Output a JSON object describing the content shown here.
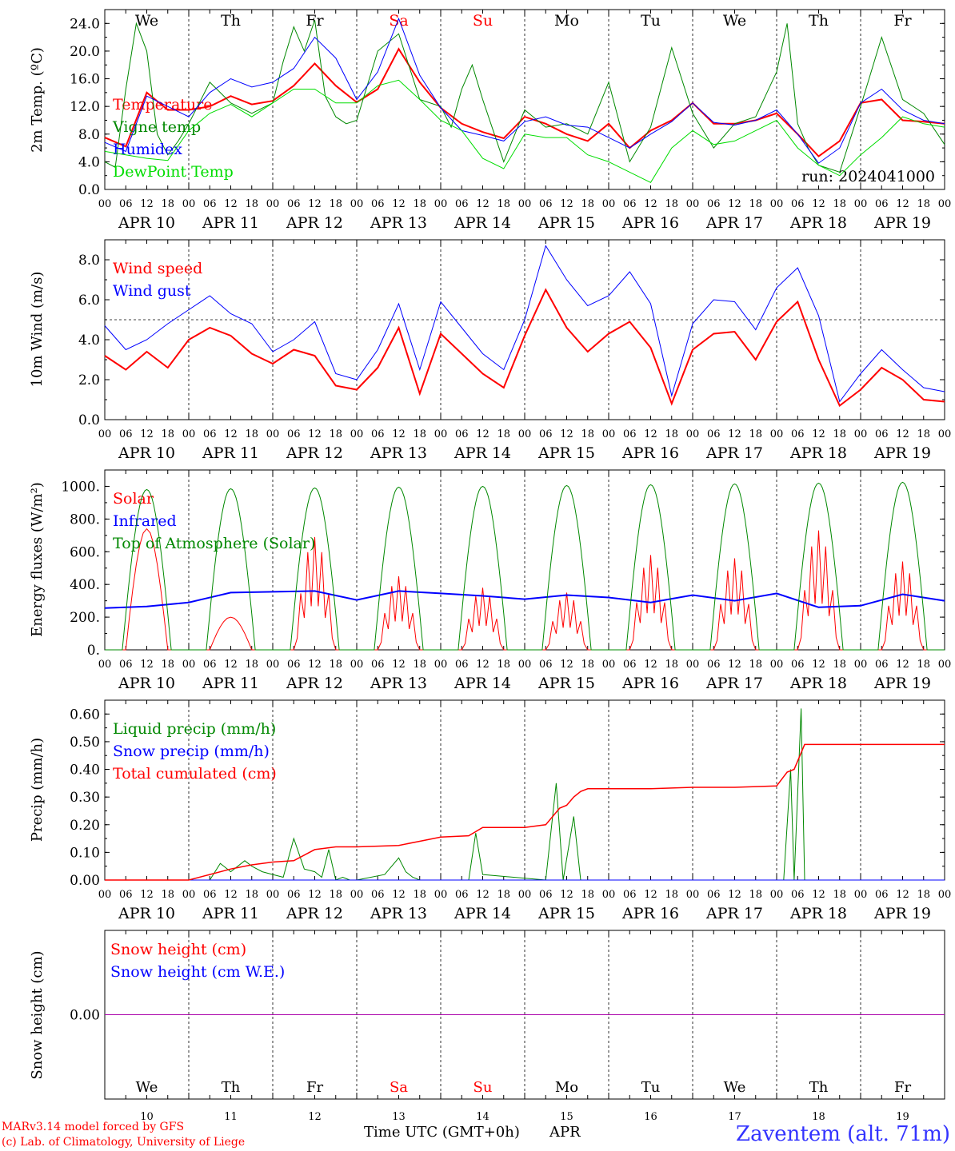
{
  "colors": {
    "temperature": "#ff0000",
    "vigne": "#008800",
    "humidex": "#0000ff",
    "dewpoint": "#00dd00",
    "day_red": "#ff0000",
    "text": "#000000",
    "station": "#3333ff",
    "purple": "#aa00aa"
  },
  "footer": {
    "model_line": "MARv3.14 model forced by GFS",
    "copyright_line": "(c) Lab. of Climatology, University of Liege",
    "axis_title": "Time UTC (GMT+0h)",
    "month": "APR",
    "station": "Zaventem (alt. 71m)"
  },
  "chart_data": [
    {
      "type": "line",
      "ylabel": "2m Temp. (ºC)",
      "ylim": [
        0,
        26
      ],
      "yticks": [
        "0.0",
        "4.0",
        "8.0",
        "12.0",
        "16.0",
        "20.0",
        "24.0"
      ],
      "ytick_values": [
        0,
        4,
        8,
        12,
        16,
        20,
        24
      ],
      "annotation": "run: 2024041000",
      "top_labels": [
        "We",
        "Th",
        "Fr",
        "Sa",
        "Su",
        "Mo",
        "Tu",
        "We",
        "Th",
        "Fr"
      ],
      "top_label_colors": [
        "#000000",
        "#000000",
        "#000000",
        "#ff0000",
        "#ff0000",
        "#000000",
        "#000000",
        "#000000",
        "#000000",
        "#000000"
      ],
      "x_hour_labels": [
        "00",
        "06",
        "12",
        "18"
      ],
      "x_day_labels": [
        "APR 10",
        "APR 11",
        "APR 12",
        "APR 13",
        "APR 14",
        "APR 15",
        "APR 16",
        "APR 17",
        "APR 18",
        "APR 19"
      ],
      "series": [
        {
          "name": "Temperature",
          "color": "#ff0000",
          "width": 2,
          "x": [
            0,
            6,
            12,
            18,
            24,
            30,
            36,
            42,
            48,
            54,
            60,
            66,
            72,
            78,
            84,
            90,
            96,
            102,
            108,
            114,
            120,
            126,
            132,
            138,
            144,
            150,
            156,
            162,
            168,
            174,
            180,
            186,
            192,
            198,
            204,
            210,
            216,
            222,
            228,
            234,
            240
          ],
          "y": [
            7.5,
            6.2,
            14.0,
            11.5,
            11.5,
            12.0,
            13.5,
            12.3,
            12.8,
            15.0,
            18.2,
            15.0,
            12.6,
            14.5,
            20.3,
            15.5,
            11.8,
            9.5,
            8.3,
            7.4,
            10.5,
            9.5,
            8.0,
            7.0,
            9.5,
            6.0,
            8.5,
            10.0,
            12.5,
            9.5,
            9.5,
            10.0,
            11.0,
            8.0,
            4.8,
            7.0,
            12.5,
            13.0,
            10.0,
            9.8,
            9.5
          ]
        },
        {
          "name": "Vigne temp",
          "color": "#008800",
          "width": 1,
          "x": [
            0,
            3,
            6,
            9,
            12,
            15,
            18,
            21,
            24,
            30,
            36,
            42,
            48,
            51,
            54,
            57,
            60,
            63,
            66,
            69,
            72,
            78,
            84,
            90,
            96,
            99,
            102,
            105,
            108,
            114,
            120,
            126,
            132,
            138,
            144,
            150,
            156,
            162,
            168,
            174,
            180,
            186,
            192,
            195,
            198,
            201,
            204,
            210,
            216,
            222,
            228,
            234,
            240
          ],
          "y": [
            4.0,
            3.2,
            14.5,
            24.0,
            20.0,
            8.0,
            5.0,
            7.0,
            9.5,
            15.5,
            12.5,
            11.0,
            12.5,
            18.5,
            23.5,
            20.0,
            24.5,
            13.5,
            10.5,
            9.5,
            10.0,
            20.0,
            22.5,
            13.0,
            12.0,
            9.0,
            14.5,
            18.0,
            13.0,
            4.0,
            11.5,
            9.0,
            9.5,
            8.0,
            15.5,
            4.0,
            9.0,
            20.5,
            11.0,
            6.0,
            9.5,
            10.5,
            17.0,
            24.0,
            9.5,
            6.0,
            3.5,
            2.5,
            12.0,
            22.0,
            13.0,
            11.0,
            6.5
          ]
        },
        {
          "name": "Humidex",
          "color": "#0000ff",
          "width": 1,
          "x": [
            0,
            6,
            12,
            18,
            24,
            30,
            36,
            42,
            48,
            54,
            60,
            66,
            72,
            78,
            84,
            90,
            96,
            102,
            108,
            114,
            120,
            126,
            132,
            138,
            144,
            150,
            156,
            162,
            168,
            174,
            180,
            186,
            192,
            198,
            204,
            210,
            216,
            222,
            228,
            234,
            240
          ],
          "y": [
            6.8,
            5.5,
            13.5,
            12.0,
            10.5,
            14.0,
            16.0,
            14.8,
            15.5,
            17.5,
            22.0,
            19.0,
            13.0,
            17.0,
            24.7,
            16.5,
            11.8,
            8.5,
            7.8,
            7.0,
            9.8,
            10.5,
            9.3,
            9.0,
            7.5,
            6.0,
            8.0,
            9.8,
            12.5,
            9.7,
            9.3,
            10.0,
            11.5,
            8.0,
            3.8,
            6.0,
            12.5,
            14.5,
            11.5,
            10.0,
            9.5
          ]
        },
        {
          "name": "DewPoint Temp",
          "color": "#00dd00",
          "width": 1,
          "x": [
            0,
            6,
            12,
            18,
            24,
            30,
            36,
            42,
            48,
            54,
            60,
            66,
            72,
            78,
            84,
            90,
            96,
            102,
            108,
            114,
            120,
            126,
            132,
            138,
            144,
            150,
            156,
            162,
            168,
            174,
            180,
            186,
            192,
            198,
            204,
            210,
            216,
            222,
            228,
            234,
            240
          ],
          "y": [
            5.5,
            5.0,
            4.5,
            4.2,
            8.5,
            11.0,
            12.3,
            10.5,
            12.5,
            14.5,
            14.5,
            12.5,
            12.5,
            15.0,
            15.8,
            13.0,
            10.0,
            8.5,
            4.5,
            3.0,
            8.0,
            7.5,
            7.5,
            5.0,
            4.0,
            2.5,
            1.0,
            6.0,
            8.5,
            6.5,
            7.0,
            8.5,
            10.0,
            6.0,
            3.5,
            2.0,
            5.0,
            7.5,
            10.5,
            9.5,
            9.0
          ]
        }
      ]
    },
    {
      "type": "line",
      "ylabel": "10m Wind (m/s)",
      "ylim": [
        0,
        9
      ],
      "yticks": [
        "0.0",
        "2.0",
        "4.0",
        "6.0",
        "8.0"
      ],
      "ytick_values": [
        0,
        2,
        4,
        6,
        8
      ],
      "reference_line": 5,
      "x_hour_labels": [
        "00",
        "06",
        "12",
        "18"
      ],
      "x_day_labels": [
        "APR 10",
        "APR 11",
        "APR 12",
        "APR 13",
        "APR 14",
        "APR 15",
        "APR 16",
        "APR 17",
        "APR 18",
        "APR 19"
      ],
      "series": [
        {
          "name": "Wind speed",
          "color": "#ff0000",
          "width": 2,
          "x": [
            0,
            6,
            12,
            18,
            24,
            30,
            36,
            42,
            48,
            54,
            60,
            66,
            72,
            78,
            84,
            90,
            96,
            102,
            108,
            114,
            120,
            126,
            132,
            138,
            144,
            150,
            156,
            162,
            168,
            174,
            180,
            186,
            192,
            198,
            204,
            210,
            216,
            222,
            228,
            234,
            240
          ],
          "y": [
            3.2,
            2.5,
            3.4,
            2.6,
            4.0,
            4.6,
            4.2,
            3.3,
            2.8,
            3.5,
            3.2,
            1.7,
            1.5,
            2.6,
            4.6,
            1.3,
            4.3,
            3.3,
            2.3,
            1.6,
            4.2,
            6.5,
            4.6,
            3.4,
            4.3,
            4.9,
            3.6,
            0.8,
            3.5,
            4.3,
            4.4,
            3.0,
            4.9,
            5.9,
            3.0,
            0.7,
            1.5,
            2.6,
            2.0,
            1.0,
            0.9
          ]
        },
        {
          "name": "Wind gust",
          "color": "#0000ff",
          "width": 1,
          "x": [
            0,
            6,
            12,
            18,
            24,
            30,
            36,
            42,
            48,
            54,
            60,
            66,
            72,
            78,
            84,
            90,
            96,
            102,
            108,
            114,
            120,
            126,
            132,
            138,
            144,
            150,
            156,
            162,
            168,
            174,
            180,
            186,
            192,
            198,
            204,
            210,
            216,
            222,
            228,
            234,
            240
          ],
          "y": [
            4.7,
            3.5,
            4.0,
            4.8,
            5.5,
            6.2,
            5.3,
            4.8,
            3.4,
            4.0,
            4.9,
            2.3,
            2.0,
            3.5,
            5.8,
            2.5,
            5.9,
            4.6,
            3.3,
            2.5,
            5.0,
            8.7,
            7.0,
            5.7,
            6.2,
            7.4,
            5.8,
            1.2,
            4.8,
            6.0,
            5.9,
            4.5,
            6.6,
            7.6,
            5.2,
            0.9,
            2.3,
            3.5,
            2.5,
            1.6,
            1.4
          ]
        }
      ]
    },
    {
      "type": "line",
      "ylabel": "Energy fluxes (W/m²)",
      "ylim": [
        0,
        1100
      ],
      "yticks": [
        "0.",
        "200.",
        "400.",
        "600.",
        "800.",
        "1000."
      ],
      "ytick_values": [
        0,
        200,
        400,
        600,
        800,
        1000
      ],
      "x_hour_labels": [
        "00",
        "06",
        "12",
        "18"
      ],
      "x_day_labels": [
        "APR 10",
        "APR 11",
        "APR 12",
        "APR 13",
        "APR 14",
        "APR 15",
        "APR 16",
        "APR 17",
        "APR 18",
        "APR 19"
      ],
      "toa_peaks": [
        980,
        985,
        990,
        995,
        1000,
        1005,
        1010,
        1015,
        1020,
        1025
      ],
      "solar_peaks": [
        740,
        200,
        690,
        450,
        380,
        350,
        580,
        560,
        730,
        540
      ],
      "series": [
        {
          "name": "Solar",
          "color": "#ff0000",
          "width": 1
        },
        {
          "name": "Infrared",
          "color": "#0000ff",
          "width": 2,
          "x": [
            0,
            12,
            24,
            36,
            48,
            60,
            72,
            84,
            96,
            108,
            120,
            132,
            144,
            156,
            168,
            180,
            192,
            204,
            216,
            228,
            240
          ],
          "y": [
            255,
            265,
            290,
            350,
            355,
            360,
            305,
            360,
            345,
            330,
            310,
            335,
            320,
            290,
            335,
            300,
            345,
            260,
            270,
            340,
            300
          ]
        },
        {
          "name": "Top of Atmosphere (Solar)",
          "color": "#008800",
          "width": 1
        }
      ]
    },
    {
      "type": "line",
      "ylabel": "Precip (mm/h)",
      "ylim": [
        0,
        0.65
      ],
      "yticks": [
        "0.00",
        "0.10",
        "0.20",
        "0.30",
        "0.40",
        "0.50",
        "0.60"
      ],
      "ytick_values": [
        0,
        0.1,
        0.2,
        0.3,
        0.4,
        0.5,
        0.6
      ],
      "x_hour_labels": [
        "00",
        "06",
        "12",
        "18"
      ],
      "x_day_labels": [
        "APR 10",
        "APR 11",
        "APR 12",
        "APR 13",
        "APR 14",
        "APR 15",
        "APR 16",
        "APR 17",
        "APR 18",
        "APR 19"
      ],
      "series": [
        {
          "name": "Liquid precip (mm/h)",
          "color": "#008800",
          "width": 1,
          "x": [
            0,
            30,
            33,
            36,
            40,
            42,
            45,
            48,
            51,
            54,
            57,
            60,
            62,
            64,
            66,
            68,
            70,
            72,
            80,
            84,
            86,
            88,
            90,
            104,
            106,
            108,
            126,
            129,
            131,
            134,
            136,
            139,
            142,
            180,
            194,
            196,
            197,
            199,
            200,
            202,
            204,
            240
          ],
          "y": [
            0,
            0,
            0.06,
            0.03,
            0.07,
            0.05,
            0.03,
            0.02,
            0.01,
            0.15,
            0.04,
            0.03,
            0.01,
            0.11,
            0.0,
            0.01,
            0.0,
            0.0,
            0.02,
            0.08,
            0.03,
            0.01,
            0.0,
            0.0,
            0.17,
            0.02,
            0.0,
            0.35,
            0.0,
            0.23,
            0.0,
            0.0,
            0.0,
            0.0,
            0.0,
            0.4,
            0.0,
            0.62,
            0.0,
            0.0,
            0.0,
            0
          ]
        },
        {
          "name": "Snow precip (mm/h)",
          "color": "#0000ff",
          "width": 1,
          "x": [
            0,
            240
          ],
          "y": [
            0,
            0
          ]
        },
        {
          "name": "Total cumulated (cm)",
          "color": "#ff0000",
          "width": 1.5,
          "x": [
            0,
            24,
            30,
            36,
            42,
            48,
            54,
            60,
            66,
            72,
            84,
            90,
            96,
            104,
            108,
            120,
            126,
            130,
            132,
            134,
            136,
            138,
            144,
            156,
            168,
            180,
            192,
            195,
            197,
            199,
            200,
            204,
            216,
            240
          ],
          "y": [
            0,
            0,
            0.02,
            0.04,
            0.055,
            0.065,
            0.07,
            0.11,
            0.12,
            0.12,
            0.125,
            0.14,
            0.155,
            0.16,
            0.19,
            0.19,
            0.2,
            0.26,
            0.27,
            0.3,
            0.32,
            0.33,
            0.33,
            0.33,
            0.335,
            0.335,
            0.34,
            0.39,
            0.4,
            0.46,
            0.49,
            0.49,
            0.49,
            0.49
          ]
        }
      ]
    },
    {
      "type": "line",
      "ylabel": "Snow height (cm)",
      "yticks": [
        "0.00"
      ],
      "ytick_values": [
        0
      ],
      "bottom_labels": [
        "We",
        "Th",
        "Fr",
        "Sa",
        "Su",
        "Mo",
        "Tu",
        "We",
        "Th",
        "Fr"
      ],
      "bottom_label_colors": [
        "#000000",
        "#000000",
        "#000000",
        "#ff0000",
        "#ff0000",
        "#000000",
        "#000000",
        "#000000",
        "#000000",
        "#000000"
      ],
      "x_day_numbers": [
        "10",
        "11",
        "12",
        "13",
        "14",
        "15",
        "16",
        "17",
        "18",
        "19"
      ],
      "series": [
        {
          "name": "Snow height (cm)",
          "color": "#ff0000",
          "width": 1,
          "x": [
            0,
            240
          ],
          "y": [
            0,
            0
          ]
        },
        {
          "name": "Snow height (cm W.E.)",
          "color": "#0000ff",
          "width": 1,
          "x": [
            0,
            240
          ],
          "y": [
            0,
            0
          ]
        }
      ]
    }
  ]
}
